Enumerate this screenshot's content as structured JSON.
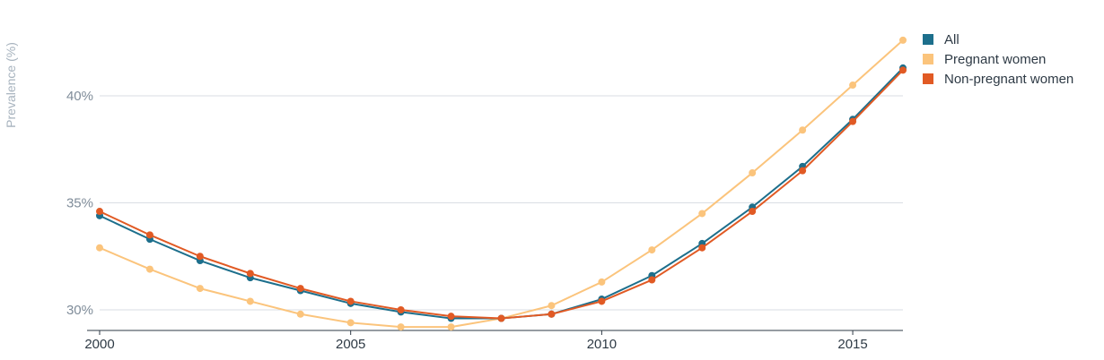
{
  "chart_data": {
    "type": "line",
    "ylabel": "Prevalence (%)",
    "ylim": [
      29.0,
      43.0
    ],
    "xlim": [
      2000,
      2016
    ],
    "grid": true,
    "legend_position": "top-right",
    "y_ticks": [
      {
        "value": 30,
        "label": "30%"
      },
      {
        "value": 35,
        "label": "35%"
      },
      {
        "value": 40,
        "label": "40%"
      }
    ],
    "x_ticks": [
      {
        "value": 2000,
        "label": "2000"
      },
      {
        "value": 2005,
        "label": "2005"
      },
      {
        "value": 2010,
        "label": "2010"
      },
      {
        "value": 2015,
        "label": "2015"
      }
    ],
    "x": [
      2000,
      2001,
      2002,
      2003,
      2004,
      2005,
      2006,
      2007,
      2008,
      2009,
      2010,
      2011,
      2012,
      2013,
      2014,
      2015,
      2016
    ],
    "series": [
      {
        "name": "Pregnant women",
        "color": "#fbc47c",
        "values": [
          32.9,
          31.9,
          31.0,
          30.4,
          29.8,
          29.4,
          29.2,
          29.2,
          29.6,
          30.2,
          31.3,
          32.8,
          34.5,
          36.4,
          38.4,
          40.5,
          42.6
        ]
      },
      {
        "name": "All",
        "color": "#1d6f8c",
        "values": [
          34.4,
          33.3,
          32.3,
          31.5,
          30.9,
          30.3,
          29.9,
          29.6,
          29.6,
          29.8,
          30.5,
          31.6,
          33.1,
          34.8,
          36.7,
          38.9,
          41.3
        ]
      },
      {
        "name": "Non-pregnant women",
        "color": "#e15a24",
        "values": [
          34.6,
          33.5,
          32.5,
          31.7,
          31.0,
          30.4,
          30.0,
          29.7,
          29.6,
          29.8,
          30.4,
          31.4,
          32.9,
          34.6,
          36.5,
          38.8,
          41.2
        ]
      }
    ],
    "legend": [
      {
        "name": "All",
        "color": "#1d6f8c"
      },
      {
        "name": "Pregnant women",
        "color": "#fbc47c"
      },
      {
        "name": "Non-pregnant women",
        "color": "#e15a24"
      }
    ]
  }
}
